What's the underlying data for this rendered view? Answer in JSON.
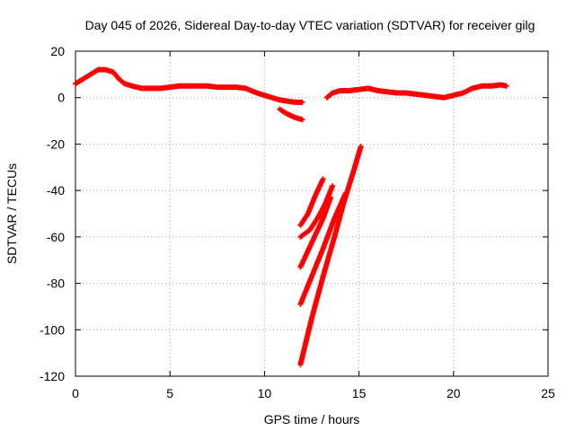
{
  "chart_data": {
    "type": "scatter",
    "title": "Day 045 of 2026, Sidereal Day-to-day VTEC variation (SDTVAR) for receiver gilg",
    "xlabel": "GPS time / hours",
    "ylabel": "SDTVAR / TECUs",
    "xlim": [
      0,
      25
    ],
    "ylim": [
      -120,
      20
    ],
    "xticks": [
      "0",
      "5",
      "10",
      "15",
      "20",
      "25"
    ],
    "yticks": [
      "20",
      "0",
      "-20",
      "-40",
      "-60",
      "-80",
      "-100",
      "-120"
    ],
    "grid": true,
    "legend": "none",
    "marker": "plus",
    "color": "#ff0000",
    "segments": [
      [
        [
          0,
          6
        ],
        [
          0.4,
          8
        ],
        [
          0.8,
          10
        ],
        [
          1.2,
          12
        ],
        [
          1.6,
          12
        ],
        [
          2.0,
          11
        ],
        [
          2.3,
          8
        ],
        [
          2.6,
          6
        ],
        [
          3,
          5
        ],
        [
          3.5,
          4
        ],
        [
          4,
          4
        ],
        [
          4.5,
          4
        ],
        [
          5,
          4.5
        ],
        [
          5.5,
          5
        ],
        [
          6,
          5
        ],
        [
          6.5,
          5
        ],
        [
          7,
          5
        ],
        [
          7.5,
          4.5
        ],
        [
          8,
          4.5
        ],
        [
          8.5,
          4.5
        ],
        [
          9,
          4
        ],
        [
          9.3,
          3
        ],
        [
          9.6,
          2
        ],
        [
          10,
          1
        ],
        [
          10.4,
          0
        ],
        [
          10.8,
          -1
        ],
        [
          11.2,
          -1.5
        ],
        [
          11.6,
          -2
        ],
        [
          12,
          -2
        ]
      ],
      [
        [
          10.8,
          -5
        ],
        [
          11.2,
          -7
        ],
        [
          11.6,
          -8.5
        ],
        [
          12,
          -9.5
        ]
      ],
      [
        [
          13.3,
          0
        ],
        [
          13.6,
          2
        ],
        [
          14,
          3
        ],
        [
          14.5,
          3
        ],
        [
          15,
          3.5
        ],
        [
          15.5,
          4
        ],
        [
          16,
          3
        ],
        [
          16.5,
          2.5
        ],
        [
          17,
          2
        ],
        [
          17.5,
          2
        ],
        [
          18,
          1.5
        ],
        [
          18.5,
          1
        ],
        [
          19,
          0.5
        ],
        [
          19.5,
          0
        ],
        [
          20,
          1
        ],
        [
          20.5,
          2
        ],
        [
          21,
          4
        ],
        [
          21.5,
          5
        ],
        [
          22,
          5
        ],
        [
          22.5,
          5.5
        ],
        [
          22.8,
          5
        ]
      ],
      [
        [
          11.9,
          -55
        ],
        [
          12.3,
          -50
        ],
        [
          12.7,
          -42
        ],
        [
          13.1,
          -35
        ]
      ],
      [
        [
          11.9,
          -60
        ],
        [
          12.4,
          -57
        ],
        [
          12.8,
          -52
        ],
        [
          13.2,
          -46
        ],
        [
          13.6,
          -38
        ]
      ],
      [
        [
          11.9,
          -73
        ],
        [
          12.3,
          -66
        ],
        [
          12.7,
          -59
        ],
        [
          13.1,
          -52
        ],
        [
          13.5,
          -43
        ]
      ],
      [
        [
          11.9,
          -89
        ],
        [
          12.5,
          -77
        ],
        [
          13.1,
          -65
        ],
        [
          13.7,
          -52
        ],
        [
          14.3,
          -41
        ]
      ],
      [
        [
          11.9,
          -115
        ],
        [
          12.5,
          -95
        ],
        [
          13.1,
          -77
        ],
        [
          13.7,
          -60
        ],
        [
          14.2,
          -45
        ],
        [
          14.7,
          -32
        ],
        [
          15.1,
          -21
        ]
      ]
    ]
  }
}
